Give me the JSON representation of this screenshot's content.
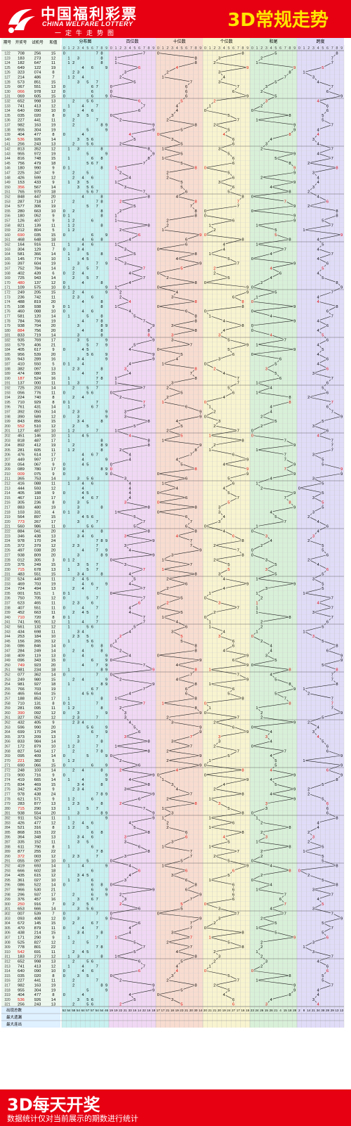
{
  "header": {
    "brand_cn": "中国福利彩票",
    "brand_en": "CHINA WELFARE LOTTERY",
    "brand_sub": "一定牛走势图",
    "title": "3D常规走势"
  },
  "footer": {
    "title": "3D每天开奖",
    "note": "数据统计仅对当前展示的期数进行统计"
  },
  "colors": {
    "brand_red": "#e60012",
    "title_yellow": "#ffe600",
    "dist_zone": "#c8f0f0",
    "hundreds_zone": "#f0d8f4",
    "tens_zone": "#f8dcd0",
    "units_zone": "#f8f4d0",
    "sum_tail_zone": "#d8f0d8",
    "span_zone": "#e0dcf8"
  },
  "chart_data": {
    "type": "table",
    "columns": [
      "期号",
      "开奖号",
      "试机号",
      "和值",
      "分布图",
      "百位数",
      "十位数",
      "个位数",
      "和尾",
      "跨度"
    ],
    "digits": [
      "0",
      "1",
      "2",
      "3",
      "4",
      "5",
      "6",
      "7",
      "8",
      "9"
    ],
    "stat_labels": [
      "出现总数",
      "最大遗漏",
      "最大连出"
    ],
    "issue_start": 122,
    "issues": 200,
    "draws": [
      [
        "708",
        "256"
      ],
      [
        "183",
        "273"
      ],
      [
        "182",
        "647"
      ],
      [
        "649",
        "122"
      ],
      [
        "323",
        "074"
      ],
      [
        "214",
        "486"
      ],
      [
        "573",
        "851"
      ],
      [
        "067",
        "551"
      ],
      [
        "066",
        "978"
      ],
      [
        "069",
        "605"
      ],
      [
        "652",
        "998"
      ],
      [
        "741",
        "413"
      ],
      [
        "640",
        "090"
      ],
      [
        "035",
        "020"
      ],
      [
        "227",
        "441"
      ],
      [
        "982",
        "163"
      ],
      [
        "955",
        "304"
      ],
      [
        "404",
        "477"
      ],
      [
        "536",
        "926"
      ],
      [
        "256",
        "243"
      ],
      [
        "813",
        "352"
      ],
      [
        "955",
        "972"
      ],
      [
        "816",
        "748"
      ],
      [
        "756",
        "479"
      ],
      [
        "180",
        "990"
      ],
      [
        "225",
        "347"
      ],
      [
        "426",
        "599"
      ],
      [
        "153",
        "433"
      ],
      [
        "356",
        "567"
      ],
      [
        "765",
        "970"
      ],
      [
        "848",
        "447"
      ],
      [
        "287",
        "718"
      ],
      [
        "577",
        "306"
      ],
      [
        "280",
        "663"
      ],
      [
        "180",
        "052"
      ],
      [
        "126",
        "407"
      ],
      [
        "821",
        "139"
      ],
      [
        "212",
        "804"
      ],
      [
        "690",
        "035"
      ],
      [
        "468",
        "648"
      ],
      [
        "164",
        "916"
      ],
      [
        "304",
        "129"
      ],
      [
        "581",
        "366"
      ],
      [
        "145",
        "774"
      ],
      [
        "397",
        "604"
      ],
      [
        "752",
        "784"
      ],
      [
        "402",
        "439"
      ],
      [
        "725",
        "943"
      ],
      [
        "480",
        "137"
      ],
      [
        "109",
        "575"
      ],
      [
        "249",
        "205"
      ],
      [
        "236",
        "742"
      ],
      [
        "488",
        "819"
      ],
      [
        "108",
        "938"
      ],
      [
        "460",
        "088"
      ],
      [
        "581",
        "120"
      ],
      [
        "784",
        "766"
      ],
      [
        "938",
        "704"
      ],
      [
        "884",
        "756"
      ],
      [
        "833",
        "719"
      ],
      [
        "935",
        "769"
      ],
      [
        "579",
        "406"
      ],
      [
        "405",
        "617"
      ],
      [
        "956",
        "539"
      ],
      [
        "943",
        "289"
      ],
      [
        "410",
        "550"
      ],
      [
        "382",
        "097"
      ],
      [
        "474",
        "080"
      ],
      [
        "187",
        "524"
      ],
      [
        "137",
        "000"
      ],
      [
        "725",
        "203"
      ],
      [
        "056",
        "776"
      ],
      [
        "224",
        "740"
      ],
      [
        "710",
        "929"
      ],
      [
        "761",
        "431"
      ],
      [
        "392",
        "050"
      ],
      [
        "390",
        "589"
      ],
      [
        "843",
        "856"
      ],
      [
        "552",
        "510"
      ],
      [
        "127",
        "487"
      ],
      [
        "451",
        "146"
      ],
      [
        "818",
        "487"
      ],
      [
        "892",
        "412"
      ],
      [
        "281",
        "605"
      ],
      [
        "476",
        "614"
      ],
      [
        "449",
        "997"
      ],
      [
        "054",
        "067"
      ],
      [
        "089",
        "780"
      ],
      [
        "009",
        "075"
      ],
      [
        "365",
        "753"
      ],
      [
        "416",
        "088"
      ],
      [
        "444",
        "593"
      ],
      [
        "405",
        "188"
      ],
      [
        "467",
        "110"
      ],
      [
        "305",
        "236"
      ],
      [
        "883",
        "480"
      ],
      [
        "103",
        "331"
      ],
      [
        "564",
        "897"
      ],
      [
        "773",
        "267"
      ],
      [
        "560",
        "986"
      ],
      [
        "884",
        "041"
      ],
      [
        "346",
        "438"
      ],
      [
        "978",
        "170"
      ],
      [
        "372",
        "379"
      ],
      [
        "497",
        "038"
      ],
      [
        "938",
        "809"
      ],
      [
        "012",
        "305"
      ],
      [
        "375",
        "249"
      ],
      [
        "715",
        "678"
      ],
      [
        "483",
        "551"
      ],
      [
        "524",
        "449"
      ],
      [
        "469",
        "703"
      ],
      [
        "724",
        "494"
      ],
      [
        "001",
        "521"
      ],
      [
        "750",
        "705"
      ],
      [
        "623",
        "465"
      ],
      [
        "407",
        "551"
      ],
      [
        "452",
        "663"
      ],
      [
        "710",
        "720"
      ],
      [
        "741",
        "901"
      ],
      [
        "561",
        "132"
      ],
      [
        "434",
        "698"
      ],
      [
        "253",
        "184"
      ],
      [
        "156",
        "265"
      ],
      [
        "086",
        "846"
      ],
      [
        "284",
        "249"
      ],
      [
        "409",
        "119"
      ],
      [
        "096",
        "343"
      ],
      [
        "749",
        "923"
      ],
      [
        "981",
        "234"
      ],
      [
        "077",
        "362"
      ],
      [
        "249",
        "980"
      ],
      [
        "981",
        "927"
      ],
      [
        "766",
        "703"
      ],
      [
        "465",
        "654"
      ],
      [
        "188",
        "853"
      ],
      [
        "710",
        "131"
      ],
      [
        "281",
        "095"
      ],
      [
        "390",
        "092"
      ],
      [
        "327",
        "052"
      ],
      [
        "432",
        "405"
      ],
      [
        "596",
        "990"
      ],
      [
        "699",
        "170"
      ],
      [
        "373",
        "209"
      ],
      [
        "833",
        "984"
      ],
      [
        "172",
        "879"
      ],
      [
        "827",
        "543"
      ],
      [
        "095",
        "409"
      ],
      [
        "221",
        "382"
      ],
      [
        "690",
        "066"
      ],
      [
        "248",
        "103"
      ],
      [
        "900",
        "716"
      ],
      [
        "419",
        "665"
      ],
      [
        "834",
        "469"
      ],
      [
        "342",
        "429"
      ],
      [
        "978",
        "438"
      ],
      [
        "621",
        "571"
      ],
      [
        "283",
        "877"
      ],
      [
        "715",
        "290"
      ],
      [
        "938",
        "554"
      ],
      [
        "911",
        "524"
      ],
      [
        "426",
        "477"
      ],
      [
        "521",
        "316"
      ],
      [
        "868",
        "315"
      ],
      [
        "364",
        "348"
      ],
      [
        "335",
        "152"
      ],
      [
        "611",
        "790"
      ],
      [
        "877",
        "255"
      ],
      [
        "372",
        "003"
      ],
      [
        "055",
        "097"
      ],
      [
        "419",
        "693"
      ],
      [
        "666",
        "602"
      ],
      [
        "435",
        "615"
      ],
      [
        "361",
        "027"
      ],
      [
        "086",
        "522"
      ],
      [
        "966",
        "530"
      ],
      [
        "296",
        "937"
      ],
      [
        "376",
        "457"
      ],
      [
        "250",
        "916"
      ],
      [
        "653",
        "666"
      ],
      [
        "007",
        "539"
      ],
      [
        "093",
        "408"
      ],
      [
        "672",
        "145"
      ],
      [
        "470",
        "879"
      ],
      [
        "438",
        "214"
      ],
      [
        "171",
        "290"
      ],
      [
        "525",
        "827"
      ],
      [
        "778",
        "801"
      ],
      [
        "542",
        "691"
      ],
      [
        "183",
        "273"
      ],
      [
        "652",
        "998"
      ],
      [
        "741",
        "413"
      ],
      [
        "640",
        "090"
      ],
      [
        "035",
        "020"
      ],
      [
        "227",
        "441"
      ],
      [
        "982",
        "163"
      ],
      [
        "955",
        "304"
      ],
      [
        "404",
        "477"
      ],
      [
        "536",
        "926"
      ],
      [
        "256",
        "243"
      ]
    ]
  }
}
